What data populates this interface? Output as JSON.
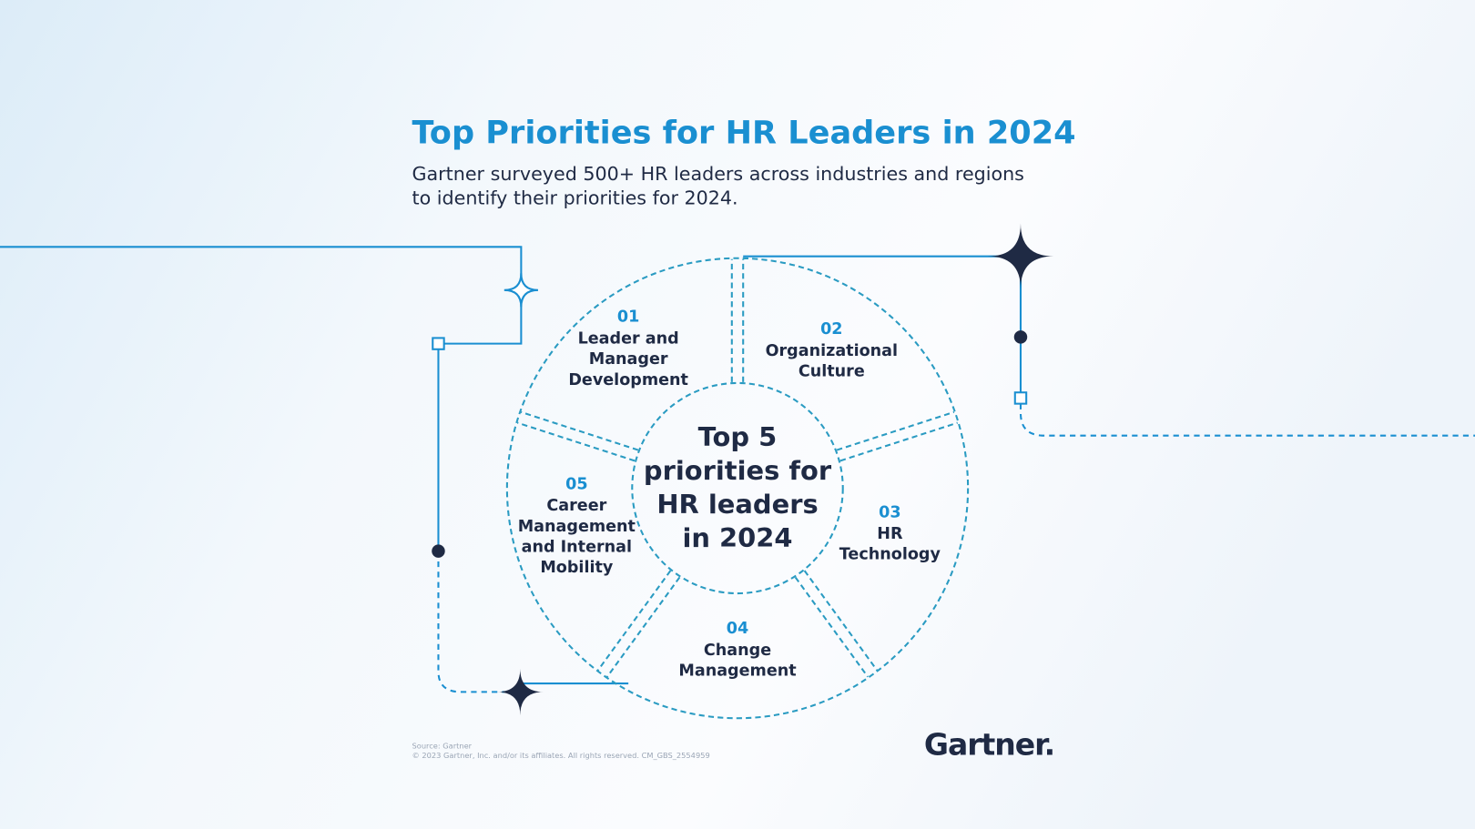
{
  "header": {
    "title": "Top Priorities for HR Leaders in 2024",
    "subtitle_lines": [
      "Gartner surveyed 500+ HR leaders across industries and regions",
      "to identify their priorities for 2024."
    ]
  },
  "diagram": {
    "center_lines": [
      "Top 5",
      "priorities for",
      "HR leaders",
      "in 2024"
    ],
    "segments": [
      {
        "number": "01",
        "label_lines": [
          "Leader and",
          "Manager",
          "Development"
        ]
      },
      {
        "number": "02",
        "label_lines": [
          "Organizational",
          "Culture"
        ]
      },
      {
        "number": "03",
        "label_lines": [
          "HR",
          "Technology"
        ]
      },
      {
        "number": "04",
        "label_lines": [
          "Change",
          "Management"
        ]
      },
      {
        "number": "05",
        "label_lines": [
          "Career",
          "Management",
          "and Internal",
          "Mobility"
        ]
      }
    ]
  },
  "footer": {
    "source": "Source: Gartner",
    "copyright": "© 2023 Gartner, Inc. and/or its affiliates. All rights reserved. CM_GBS_2554959",
    "logo": "Gartner."
  }
}
